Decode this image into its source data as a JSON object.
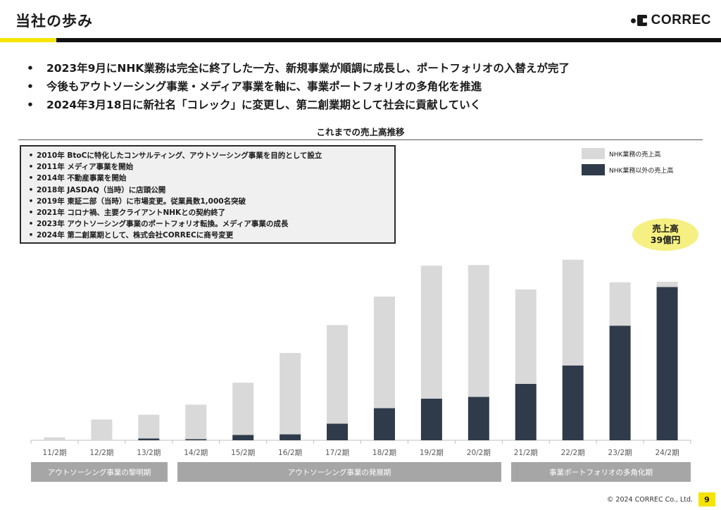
{
  "header": {
    "title": "当社の歩み",
    "logo_text": "CORREC"
  },
  "bullets": [
    "2023年9月にNHK業務は完全に終了した一方、新規事業が順調に成長し、ポートフォリオの入替えが完了",
    "今後もアウトソーシング事業・メディア事業を軸に、事業ポートフォリオの多角化を推進",
    "2024年3月18日に新社名「コレック」に変更し、第二創業期として社会に貢献していく"
  ],
  "history": [
    "2010年 BtoCに特化したコンサルティング、アウトソーシング事業を目的として設立",
    "2011年 メディア事業を開始",
    "2014年 不動産事業を開始",
    "2018年 JASDAQ（当時）に店頭公開",
    "2019年 東証二部（当時）に市場変更。従業員数1,000名突破",
    "2021年 コロナ禍、主要クライアントNHKとの契約終了",
    "2023年 アウトソーシング事業のポートフォリオ転換。メディア事業の成長",
    "2024年 第二創業期として、株式会社CORRECに商号変更"
  ],
  "callout": {
    "line1": "売上高",
    "line2": "39億円"
  },
  "phases": [
    {
      "label": "アウトソーシング事業の黎明期"
    },
    {
      "label": "アウトソーシング事業の発展期"
    },
    {
      "label": "事業ポートフォリオの多角化期"
    }
  ],
  "footer": {
    "copyright": "© 2024 CORREC Co., Ltd.",
    "page": "9"
  },
  "colors": {
    "accent_yellow": "#f5e400",
    "nhk": "#d9d9d9",
    "non_nhk": "#2f3b4a",
    "phase_bg": "#a6a6a6",
    "callout": "#f5f081"
  },
  "chart_data": {
    "type": "bar",
    "stacked": true,
    "title": "これまでの売上高推移",
    "categories": [
      "11/2期",
      "12/2期",
      "13/2期",
      "14/2期",
      "15/2期",
      "16/2期",
      "17/2期",
      "18/2期",
      "19/2期",
      "20/2期",
      "21/2期",
      "22/2期",
      "23/2期",
      "24/2期"
    ],
    "series": [
      {
        "name": "NHK業務以外の売上高",
        "color": "#2f3b4a",
        "values": [
          0,
          0,
          0.3,
          0.2,
          0.9,
          1.0,
          2.8,
          5.4,
          7.0,
          7.3,
          9.5,
          12.6,
          19.3,
          25.8
        ]
      },
      {
        "name": "NHK業務の売上高",
        "color": "#d9d9d9",
        "values": [
          0.5,
          3.5,
          4.0,
          5.8,
          8.8,
          13.7,
          16.6,
          18.8,
          22.4,
          22.2,
          15.9,
          17.8,
          7.3,
          0.9
        ]
      }
    ],
    "legend": "top-right",
    "grid": false,
    "ylim": [
      0,
      30
    ]
  }
}
